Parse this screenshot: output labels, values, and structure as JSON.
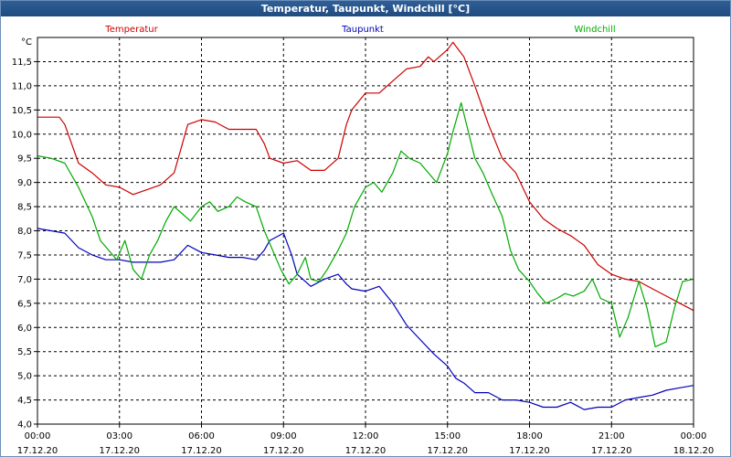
{
  "window": {
    "title": "Temperatur, Taupunkt, Windchill [°C]"
  },
  "chart_data": {
    "type": "line",
    "unit_label": "°C",
    "ylim": [
      4.0,
      12.0
    ],
    "y_ticks": [
      "4,0",
      "4,5",
      "5,0",
      "5,5",
      "6,0",
      "6,5",
      "7,0",
      "7,5",
      "8,0",
      "8,5",
      "9,0",
      "9,5",
      "10,0",
      "10,5",
      "11,0",
      "11,5"
    ],
    "x_ticks": [
      {
        "time": "00:00",
        "date": "17.12.20"
      },
      {
        "time": "03:00",
        "date": "17.12.20"
      },
      {
        "time": "06:00",
        "date": "17.12.20"
      },
      {
        "time": "09:00",
        "date": "17.12.20"
      },
      {
        "time": "12:00",
        "date": "17.12.20"
      },
      {
        "time": "15:00",
        "date": "17.12.20"
      },
      {
        "time": "18:00",
        "date": "17.12.20"
      },
      {
        "time": "21:00",
        "date": "17.12.20"
      },
      {
        "time": "00:00",
        "date": "18.12.20"
      }
    ],
    "x_unit": "hours since 17.12.20 00:00",
    "grid": true,
    "legend": "top, in-line",
    "series": [
      {
        "name": "Temperatur",
        "color": "#cc0000",
        "x": [
          0,
          0.8,
          1,
          1.5,
          2,
          2.5,
          3,
          3.5,
          4,
          4.5,
          5,
          5.3,
          5.5,
          6,
          6.5,
          7,
          7.5,
          8,
          8.3,
          8.5,
          9,
          9.5,
          10,
          10.3,
          10.5,
          11,
          11.3,
          11.5,
          12,
          12.5,
          13,
          13.3,
          13.5,
          14,
          14.3,
          14.5,
          15,
          15.2,
          15.4,
          15.6,
          16,
          16.5,
          17,
          17.5,
          18,
          18.5,
          19,
          19.5,
          20,
          20.5,
          21,
          21.5,
          22,
          22.5,
          23,
          23.5,
          24
        ],
        "y": [
          10.35,
          10.35,
          10.2,
          9.4,
          9.2,
          8.95,
          8.9,
          8.75,
          8.85,
          8.95,
          9.2,
          9.8,
          10.2,
          10.3,
          10.25,
          10.1,
          10.1,
          10.1,
          9.8,
          9.5,
          9.4,
          9.45,
          9.25,
          9.25,
          9.25,
          9.5,
          10.2,
          10.5,
          10.85,
          10.85,
          11.1,
          11.25,
          11.35,
          11.4,
          11.6,
          11.5,
          11.75,
          11.9,
          11.75,
          11.6,
          11.0,
          10.2,
          9.5,
          9.2,
          8.6,
          8.25,
          8.05,
          7.9,
          7.7,
          7.3,
          7.1,
          7.0,
          6.95,
          6.8,
          6.65,
          6.5,
          6.35
        ]
      },
      {
        "name": "Taupunkt",
        "color": "#0000bb",
        "x": [
          0,
          0.5,
          1,
          1.5,
          2,
          2.5,
          3,
          3.5,
          4,
          4.5,
          5,
          5.5,
          6,
          6.5,
          7,
          7.5,
          8,
          8.3,
          8.5,
          9,
          9.3,
          9.5,
          10,
          10.5,
          11,
          11.3,
          11.5,
          12,
          12.5,
          13,
          13.5,
          14,
          14.5,
          15,
          15.3,
          15.6,
          16,
          16.5,
          17,
          17.5,
          18,
          18.5,
          19,
          19.5,
          20,
          20.5,
          21,
          21.5,
          22,
          22.5,
          23,
          23.5,
          24
        ],
        "y": [
          8.05,
          8.0,
          7.95,
          7.65,
          7.5,
          7.4,
          7.4,
          7.35,
          7.35,
          7.35,
          7.4,
          7.7,
          7.55,
          7.5,
          7.45,
          7.45,
          7.4,
          7.6,
          7.8,
          7.95,
          7.5,
          7.1,
          6.85,
          7.0,
          7.1,
          6.9,
          6.8,
          6.75,
          6.85,
          6.5,
          6.05,
          5.75,
          5.45,
          5.2,
          4.95,
          4.85,
          4.65,
          4.65,
          4.5,
          4.5,
          4.45,
          4.35,
          4.35,
          4.45,
          4.3,
          4.35,
          4.35,
          4.5,
          4.55,
          4.6,
          4.7,
          4.75,
          4.8
        ]
      },
      {
        "name": "Windchill",
        "color": "#00aa00",
        "x": [
          0,
          0.5,
          1,
          1.5,
          2,
          2.3,
          2.6,
          2.9,
          3.2,
          3.5,
          3.8,
          4.1,
          4.4,
          4.7,
          5,
          5.3,
          5.6,
          6,
          6.3,
          6.6,
          7,
          7.3,
          7.6,
          8,
          8.3,
          8.6,
          8.9,
          9.2,
          9.5,
          9.8,
          10,
          10.3,
          10.6,
          11,
          11.3,
          11.6,
          12,
          12.3,
          12.6,
          13,
          13.3,
          13.6,
          14,
          14.3,
          14.6,
          15,
          15.2,
          15.5,
          16,
          16.3,
          16.6,
          17,
          17.3,
          17.6,
          18,
          18.3,
          18.6,
          19,
          19.3,
          19.6,
          20,
          20.3,
          20.6,
          21,
          21.3,
          21.6,
          22,
          22.3,
          22.6,
          23,
          23.3,
          23.6,
          24
        ],
        "y": [
          9.55,
          9.5,
          9.4,
          8.9,
          8.3,
          7.8,
          7.6,
          7.4,
          7.8,
          7.2,
          7.0,
          7.5,
          7.8,
          8.2,
          8.5,
          8.35,
          8.2,
          8.5,
          8.6,
          8.4,
          8.5,
          8.7,
          8.6,
          8.5,
          8.0,
          7.6,
          7.2,
          6.9,
          7.1,
          7.45,
          7.0,
          6.95,
          7.2,
          7.6,
          7.95,
          8.5,
          8.9,
          9.0,
          8.8,
          9.2,
          9.65,
          9.5,
          9.4,
          9.2,
          9.0,
          9.6,
          10.05,
          10.65,
          9.5,
          9.2,
          8.8,
          8.3,
          7.6,
          7.2,
          6.95,
          6.7,
          6.5,
          6.6,
          6.7,
          6.65,
          6.75,
          7.0,
          6.6,
          6.5,
          5.8,
          6.2,
          6.95,
          6.4,
          5.6,
          5.7,
          6.4,
          6.95,
          7.0
        ]
      }
    ]
  }
}
